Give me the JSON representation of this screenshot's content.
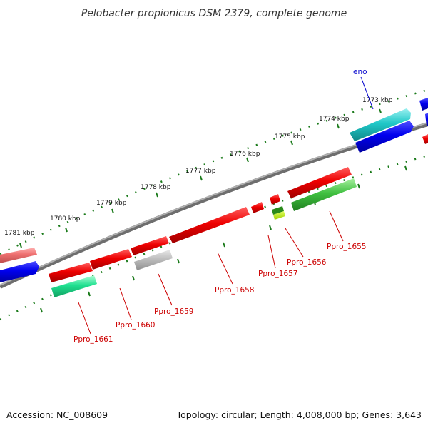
{
  "title": "Pelobacter propionicus DSM 2379, complete genome",
  "footer": {
    "accession": "Accession: NC_008609",
    "summary": "Topology: circular; Length: 4,008,000 bp; Genes: 3,643"
  },
  "colors": {
    "backbone": "#808080",
    "tick": "#1a7a1a",
    "label_red": "#cc0000",
    "label_blue": "#0000cc"
  },
  "ticks": [
    {
      "label": "1773 kbp"
    },
    {
      "label": "1774 kbp"
    },
    {
      "label": "1775 kbp"
    },
    {
      "label": "1776 kbp"
    },
    {
      "label": "1777 kbp"
    },
    {
      "label": "1778 kbp"
    },
    {
      "label": "1779 kbp"
    },
    {
      "label": "1780 kbp"
    },
    {
      "label": "1781 kbp"
    }
  ],
  "genes": [
    {
      "name": "eno",
      "color": "blue",
      "label_color": "blue"
    },
    {
      "name": "Ppro_1655",
      "color": "red",
      "label_color": "red"
    },
    {
      "name": "Ppro_1656",
      "color": "red",
      "label_color": "red"
    },
    {
      "name": "Ppro_1657",
      "color": "red",
      "label_color": "red"
    },
    {
      "name": "Ppro_1658",
      "color": "red",
      "label_color": "red"
    },
    {
      "name": "Ppro_1659",
      "color": "red",
      "label_color": "red"
    },
    {
      "name": "Ppro_1660",
      "color": "red",
      "label_color": "red"
    },
    {
      "name": "Ppro_1661",
      "color": "red",
      "label_color": "red"
    }
  ]
}
